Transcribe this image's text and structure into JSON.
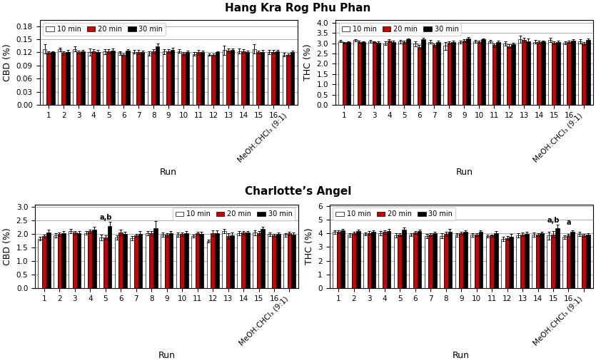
{
  "chart_data": [
    {
      "type": "bar",
      "title": "Hang Kra Rog Phu Phan",
      "categories": [
        "1",
        "2",
        "3",
        "4",
        "5",
        "6",
        "7",
        "8",
        "9",
        "10",
        "11",
        "12",
        "13",
        "14",
        "15",
        "16",
        "MeOH:CHCl₃ (9:1)"
      ],
      "x_label": "Run",
      "y_label": "CBD (%)",
      "ylim": [
        0,
        0.195
      ],
      "yticks": [
        {
          "value": 0.0,
          "label": "0.00"
        },
        {
          "value": 0.03,
          "label": "0.03"
        },
        {
          "value": 0.06,
          "label": "0.06"
        },
        {
          "value": 0.09,
          "label": "0.09"
        },
        {
          "value": 0.12,
          "label": "0.12"
        },
        {
          "value": 0.15,
          "label": "0.15"
        },
        {
          "value": 0.18,
          "label": "0.18"
        }
      ],
      "grid": true,
      "legend": "upper left",
      "series": [
        {
          "name": "10 min",
          "color": "white",
          "values": [
            0.128,
            0.127,
            0.128,
            0.121,
            0.122,
            0.119,
            0.121,
            0.118,
            0.122,
            0.123,
            0.116,
            0.115,
            0.125,
            0.123,
            0.128,
            0.121,
            0.115
          ],
          "errors": [
            0.01,
            0.004,
            0.005,
            0.008,
            0.006,
            0.004,
            0.004,
            0.005,
            0.006,
            0.004,
            0.004,
            0.003,
            0.01,
            0.006,
            0.01,
            0.005,
            0.004
          ]
        },
        {
          "name": "20 min",
          "color": "#cc0000",
          "values": [
            0.119,
            0.119,
            0.121,
            0.123,
            0.122,
            0.115,
            0.121,
            0.122,
            0.123,
            0.117,
            0.12,
            0.115,
            0.124,
            0.123,
            0.121,
            0.121,
            0.115
          ],
          "errors": [
            0.003,
            0.004,
            0.003,
            0.004,
            0.005,
            0.003,
            0.005,
            0.005,
            0.004,
            0.004,
            0.005,
            0.003,
            0.005,
            0.004,
            0.003,
            0.004,
            0.003
          ]
        },
        {
          "name": "30 min",
          "color": "black",
          "values": [
            0.12,
            0.121,
            0.122,
            0.121,
            0.124,
            0.124,
            0.121,
            0.134,
            0.125,
            0.121,
            0.12,
            0.12,
            0.125,
            0.121,
            0.121,
            0.122,
            0.12
          ],
          "errors": [
            0.003,
            0.004,
            0.003,
            0.004,
            0.005,
            0.003,
            0.003,
            0.006,
            0.005,
            0.003,
            0.004,
            0.003,
            0.004,
            0.003,
            0.004,
            0.003,
            0.004
          ]
        }
      ]
    },
    {
      "type": "bar",
      "categories": [
        "1",
        "2",
        "3",
        "4",
        "5",
        "6",
        "7",
        "8",
        "9",
        "10",
        "11",
        "12",
        "13",
        "14",
        "15",
        "16",
        "MeOH:CHCl₃ (9:1)"
      ],
      "x_label": "Run",
      "y_label": "THC (%)",
      "ylim": [
        0,
        4.15
      ],
      "yticks": [
        0.0,
        0.5,
        1.0,
        1.5,
        2.0,
        2.5,
        3.0,
        3.5,
        4.0
      ],
      "grid": true,
      "legend": "upper left",
      "series": [
        {
          "name": "10 min",
          "color": "white",
          "values": [
            3.1,
            3.15,
            3.1,
            3.0,
            3.08,
            2.97,
            3.07,
            2.87,
            3.07,
            3.1,
            3.1,
            2.98,
            3.2,
            3.07,
            3.15,
            3.02,
            3.08
          ],
          "errors": [
            0.06,
            0.06,
            0.07,
            0.08,
            0.08,
            0.12,
            0.1,
            0.18,
            0.07,
            0.07,
            0.07,
            0.1,
            0.18,
            0.08,
            0.1,
            0.07,
            0.1
          ]
        },
        {
          "name": "20 min",
          "color": "#cc0000",
          "values": [
            3.03,
            3.07,
            3.05,
            3.12,
            3.05,
            2.82,
            2.9,
            3.02,
            3.13,
            3.07,
            2.9,
            2.86,
            3.17,
            3.05,
            3.02,
            3.07,
            2.98
          ],
          "errors": [
            0.04,
            0.05,
            0.04,
            0.06,
            0.06,
            0.1,
            0.1,
            0.08,
            0.07,
            0.05,
            0.08,
            0.08,
            0.1,
            0.06,
            0.08,
            0.06,
            0.08
          ]
        },
        {
          "name": "30 min",
          "color": "black",
          "values": [
            3.05,
            3.05,
            3.03,
            3.07,
            3.18,
            3.2,
            3.05,
            3.05,
            3.22,
            3.19,
            3.05,
            2.95,
            3.1,
            3.08,
            3.07,
            3.12,
            3.15
          ],
          "errors": [
            0.04,
            0.05,
            0.05,
            0.07,
            0.06,
            0.08,
            0.08,
            0.08,
            0.07,
            0.05,
            0.06,
            0.07,
            0.12,
            0.06,
            0.06,
            0.06,
            0.07
          ]
        }
      ]
    },
    {
      "type": "bar",
      "title": "Charlotte’s Angel",
      "categories": [
        "1",
        "2",
        "3",
        "4",
        "5",
        "6",
        "7",
        "8",
        "9",
        "10",
        "11",
        "12",
        "13",
        "14",
        "15",
        "16",
        "MeOH:CHCl₃ (9:1)"
      ],
      "x_label": "Run",
      "y_label": "CBD (%)",
      "ylim": [
        0,
        3.1
      ],
      "yticks": [
        0.0,
        0.5,
        1.0,
        1.5,
        2.0,
        2.5,
        3.0
      ],
      "grid": true,
      "legend": "upper right",
      "annotations": [
        {
          "category": "5",
          "y": 2.48,
          "text": "a,b"
        }
      ],
      "series": [
        {
          "name": "10 min",
          "color": "white",
          "values": [
            1.83,
            1.95,
            2.12,
            2.04,
            1.88,
            1.87,
            1.85,
            2.03,
            1.97,
            1.97,
            1.93,
            1.75,
            2.1,
            2.03,
            2.05,
            2.0,
            1.97
          ],
          "errors": [
            0.07,
            0.07,
            0.08,
            0.07,
            0.1,
            0.08,
            0.08,
            0.08,
            0.08,
            0.08,
            0.05,
            0.05,
            0.08,
            0.07,
            0.1,
            0.07,
            0.07
          ]
        },
        {
          "name": "20 min",
          "color": "#cc0000",
          "values": [
            1.93,
            2.0,
            2.05,
            2.1,
            1.87,
            2.06,
            1.95,
            2.02,
            1.97,
            2.0,
            2.03,
            2.03,
            1.92,
            2.05,
            2.03,
            1.95,
            2.02
          ],
          "errors": [
            0.06,
            0.06,
            0.07,
            0.07,
            0.08,
            0.1,
            0.06,
            0.08,
            0.07,
            0.06,
            0.05,
            0.1,
            0.1,
            0.06,
            0.08,
            0.06,
            0.06
          ]
        },
        {
          "name": "30 min",
          "color": "black",
          "values": [
            2.07,
            2.02,
            2.03,
            2.17,
            2.3,
            2.0,
            2.0,
            2.23,
            2.02,
            2.02,
            2.0,
            2.03,
            1.95,
            2.05,
            2.18,
            2.0,
            1.97
          ],
          "errors": [
            0.1,
            0.08,
            0.07,
            0.1,
            0.15,
            0.08,
            0.12,
            0.25,
            0.08,
            0.08,
            0.08,
            0.1,
            0.1,
            0.07,
            0.1,
            0.07,
            0.08
          ]
        }
      ]
    },
    {
      "type": "bar",
      "categories": [
        "1",
        "2",
        "3",
        "4",
        "5",
        "6",
        "7",
        "8",
        "9",
        "10",
        "11",
        "12",
        "13",
        "14",
        "15",
        "16",
        "MeOH:CHCl₃ (9:1)"
      ],
      "x_label": "Run",
      "y_label": "THC (%)",
      "ylim": [
        0,
        6.1
      ],
      "yticks": [
        0,
        1,
        2,
        3,
        4,
        5,
        6
      ],
      "grid": true,
      "legend": "upper left",
      "annotations": [
        {
          "category": "15",
          "y": 4.68,
          "text": "a,b"
        },
        {
          "category": "16",
          "y": 4.5,
          "text": "a"
        }
      ],
      "series": [
        {
          "name": "10 min",
          "color": "white",
          "values": [
            4.08,
            3.88,
            3.95,
            4.0,
            3.85,
            3.9,
            3.78,
            3.8,
            3.88,
            3.88,
            3.8,
            3.6,
            3.85,
            3.9,
            3.83,
            3.72,
            3.95
          ],
          "errors": [
            0.15,
            0.12,
            0.12,
            0.15,
            0.15,
            0.12,
            0.15,
            0.18,
            0.12,
            0.12,
            0.12,
            0.15,
            0.15,
            0.15,
            0.3,
            0.15,
            0.15
          ]
        },
        {
          "name": "20 min",
          "color": "#cc0000",
          "values": [
            4.1,
            4.0,
            4.02,
            4.08,
            3.9,
            4.05,
            3.9,
            3.95,
            4.0,
            3.9,
            3.82,
            3.65,
            3.92,
            3.9,
            3.92,
            3.85,
            3.85
          ],
          "errors": [
            0.1,
            0.1,
            0.12,
            0.12,
            0.12,
            0.1,
            0.12,
            0.15,
            0.12,
            0.12,
            0.1,
            0.12,
            0.12,
            0.12,
            0.25,
            0.12,
            0.12
          ]
        },
        {
          "name": "30 min",
          "color": "black",
          "values": [
            4.2,
            4.15,
            4.1,
            4.18,
            4.25,
            4.15,
            4.0,
            4.12,
            4.1,
            4.08,
            4.02,
            3.75,
            3.95,
            4.0,
            4.35,
            4.1,
            3.9
          ],
          "errors": [
            0.12,
            0.12,
            0.12,
            0.15,
            0.18,
            0.12,
            0.12,
            0.18,
            0.12,
            0.12,
            0.12,
            0.18,
            0.15,
            0.12,
            0.3,
            0.12,
            0.12
          ]
        }
      ]
    }
  ]
}
